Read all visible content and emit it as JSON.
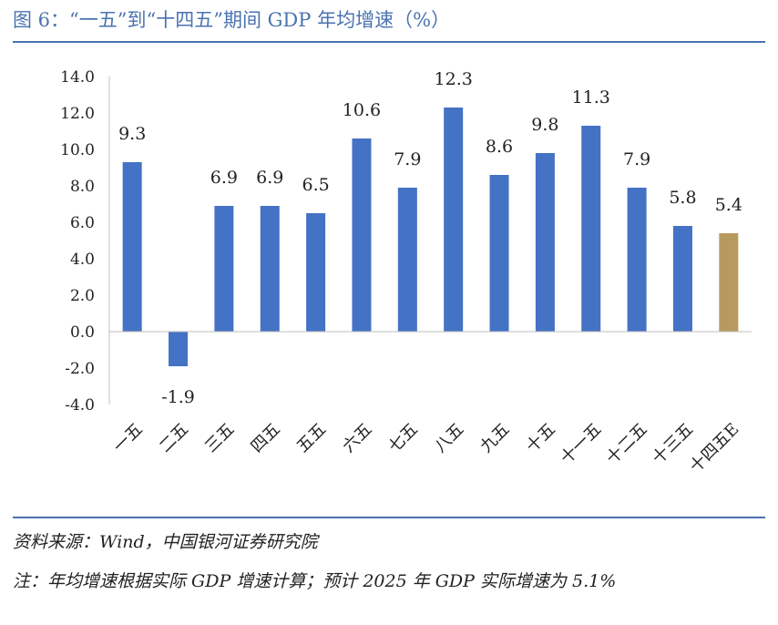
{
  "header": {
    "title": "图 6：“一五”到“十四五”期间 GDP 年均增速（%）"
  },
  "footer": {
    "source": "资料来源：Wind，中国银河证券研究院",
    "note": "注：年均增速根据实际 GDP 增速计算；预计 2025 年 GDP 实际增速为 5.1%"
  },
  "colors": {
    "bar": "#4472c4",
    "highlight": "#b89a5e",
    "text": "#222222",
    "title": "#4a72b0"
  },
  "chart_data": {
    "type": "bar",
    "title": "“一五”到“十四五”期间 GDP 年均增速（%）",
    "xlabel": "",
    "ylabel": "",
    "categories": [
      "一五",
      "二五",
      "三五",
      "四五",
      "五五",
      "六五",
      "七五",
      "八五",
      "九五",
      "十五",
      "十一五",
      "十二五",
      "十三五",
      "十四五E"
    ],
    "values": [
      9.3,
      -1.9,
      6.9,
      6.9,
      6.5,
      10.6,
      7.9,
      12.3,
      8.6,
      9.8,
      11.3,
      7.9,
      5.8,
      5.4
    ],
    "value_labels": [
      "9.3",
      "-1.9",
      "6.9",
      "6.9",
      "6.5",
      "10.6",
      "7.9",
      "12.3",
      "8.6",
      "9.8",
      "11.3",
      "7.9",
      "5.8",
      "5.4"
    ],
    "highlight_index": 13,
    "ylim": [
      -4.0,
      14.0
    ],
    "yticks": [
      "-4.0",
      "-2.0",
      "0.0",
      "2.0",
      "4.0",
      "6.0",
      "8.0",
      "10.0",
      "12.0",
      "14.0"
    ],
    "grid": false,
    "legend": "none"
  }
}
